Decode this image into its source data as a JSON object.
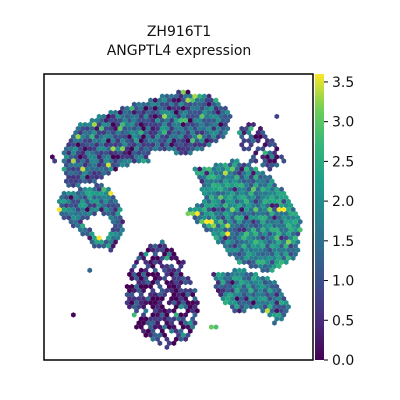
{
  "chart_data": {
    "type": "scatter",
    "title": "ZH916T1",
    "subtitle": "ANGPTL4 expression",
    "xlabel": "",
    "ylabel": "",
    "marker": "hexagon",
    "colormap": "viridis",
    "colorbar": {
      "min": 0.0,
      "max": 3.6,
      "ticks": [
        0.0,
        0.5,
        1.0,
        1.5,
        2.0,
        2.5,
        3.0,
        3.5
      ],
      "tick_labels": [
        "0.0",
        "0.5",
        "1.0",
        "1.5",
        "2.0",
        "2.5",
        "3.0",
        "3.5"
      ]
    },
    "regions": [
      {
        "points": [
          [
            0.07,
            0.72
          ],
          [
            0.12,
            0.82
          ],
          [
            0.22,
            0.86
          ],
          [
            0.35,
            0.9
          ],
          [
            0.5,
            0.94
          ],
          [
            0.62,
            0.93
          ],
          [
            0.7,
            0.86
          ],
          [
            0.68,
            0.78
          ],
          [
            0.55,
            0.72
          ],
          [
            0.42,
            0.7
          ],
          [
            0.3,
            0.68
          ],
          [
            0.18,
            0.62
          ],
          [
            0.08,
            0.6
          ]
        ],
        "mean": 1.3
      },
      {
        "points": [
          [
            0.05,
            0.58
          ],
          [
            0.14,
            0.6
          ],
          [
            0.22,
            0.62
          ],
          [
            0.28,
            0.55
          ],
          [
            0.3,
            0.45
          ],
          [
            0.25,
            0.38
          ],
          [
            0.18,
            0.4
          ],
          [
            0.12,
            0.46
          ],
          [
            0.06,
            0.5
          ]
        ],
        "mean": 1.6
      },
      {
        "points": [
          [
            0.5,
            0.66
          ],
          [
            0.62,
            0.68
          ],
          [
            0.72,
            0.7
          ],
          [
            0.82,
            0.66
          ],
          [
            0.9,
            0.58
          ],
          [
            0.96,
            0.48
          ],
          [
            0.94,
            0.36
          ],
          [
            0.84,
            0.3
          ],
          [
            0.72,
            0.34
          ],
          [
            0.62,
            0.44
          ],
          [
            0.52,
            0.52
          ]
        ],
        "mean": 1.9
      },
      {
        "points": [
          [
            0.35,
            0.38
          ],
          [
            0.45,
            0.42
          ],
          [
            0.52,
            0.34
          ],
          [
            0.58,
            0.2
          ],
          [
            0.55,
            0.08
          ],
          [
            0.45,
            0.04
          ],
          [
            0.35,
            0.1
          ],
          [
            0.3,
            0.22
          ],
          [
            0.32,
            0.32
          ]
        ],
        "mean": 0.6
      },
      {
        "points": [
          [
            0.62,
            0.3
          ],
          [
            0.74,
            0.32
          ],
          [
            0.86,
            0.28
          ],
          [
            0.92,
            0.18
          ],
          [
            0.86,
            0.12
          ],
          [
            0.76,
            0.14
          ],
          [
            0.66,
            0.2
          ]
        ],
        "mean": 1.7
      },
      {
        "points": [
          [
            0.72,
            0.84
          ],
          [
            0.8,
            0.82
          ],
          [
            0.86,
            0.76
          ],
          [
            0.9,
            0.7
          ],
          [
            0.84,
            0.66
          ],
          [
            0.76,
            0.7
          ],
          [
            0.72,
            0.76
          ]
        ],
        "mean": 0.7
      }
    ],
    "holes": [
      {
        "points": [
          [
            0.4,
            0.74
          ],
          [
            0.5,
            0.72
          ],
          [
            0.56,
            0.66
          ],
          [
            0.6,
            0.56
          ],
          [
            0.52,
            0.52
          ],
          [
            0.45,
            0.58
          ],
          [
            0.38,
            0.64
          ]
        ]
      },
      {
        "points": [
          [
            0.14,
            0.48
          ],
          [
            0.2,
            0.52
          ],
          [
            0.26,
            0.48
          ],
          [
            0.22,
            0.42
          ]
        ]
      },
      {
        "points": [
          [
            0.68,
            0.14
          ],
          [
            0.78,
            0.18
          ],
          [
            0.86,
            0.14
          ],
          [
            0.8,
            0.04
          ],
          [
            0.7,
            0.06
          ]
        ]
      }
    ]
  }
}
